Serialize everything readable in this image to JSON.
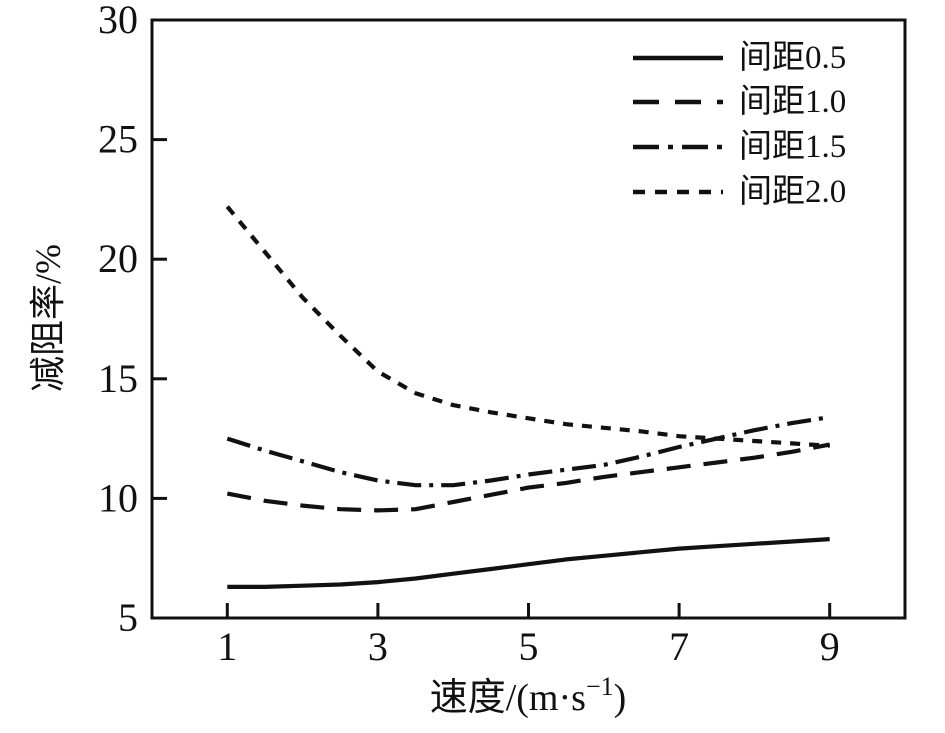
{
  "chart_data": {
    "type": "line",
    "title": "",
    "xlabel": {
      "pre": "速度/(m·s",
      "sup": "−1",
      "post": ")"
    },
    "ylabel": "减阻率/%",
    "xlim": [
      0,
      10
    ],
    "ylim": [
      5,
      30
    ],
    "xticks": [
      "1",
      "3",
      "5",
      "7",
      "9"
    ],
    "xtick_values": [
      1,
      3,
      5,
      7,
      9
    ],
    "yticks": [
      "5",
      "10",
      "15",
      "20",
      "25",
      "30"
    ],
    "ytick_values": [
      5,
      10,
      15,
      20,
      25,
      30
    ],
    "grid": false,
    "legend_position": "upper right",
    "colors": {
      "line": "#111111",
      "text": "#111111",
      "frame": "#111111",
      "background": "#ffffff"
    },
    "x": [
      1,
      1.5,
      2,
      2.5,
      3,
      3.5,
      4,
      4.5,
      5,
      5.5,
      6,
      6.5,
      7,
      7.5,
      8,
      8.5,
      9
    ],
    "series": [
      {
        "name": "间距0.5",
        "style": "solid",
        "values": [
          6.3,
          6.3,
          6.35,
          6.4,
          6.5,
          6.65,
          6.85,
          7.05,
          7.25,
          7.45,
          7.6,
          7.75,
          7.9,
          8.0,
          8.1,
          8.2,
          8.3
        ]
      },
      {
        "name": "间距1.0",
        "style": "dashed",
        "values": [
          10.2,
          9.9,
          9.7,
          9.55,
          9.5,
          9.55,
          9.85,
          10.15,
          10.45,
          10.65,
          10.9,
          11.1,
          11.3,
          11.5,
          11.7,
          11.95,
          12.25
        ]
      },
      {
        "name": "间距1.5",
        "style": "dashdot",
        "values": [
          12.5,
          12.0,
          11.55,
          11.1,
          10.75,
          10.55,
          10.55,
          10.75,
          11.0,
          11.2,
          11.4,
          11.75,
          12.15,
          12.5,
          12.85,
          13.15,
          13.4
        ]
      },
      {
        "name": "间距2.0",
        "style": "densely-dashed",
        "values": [
          22.2,
          20.3,
          18.4,
          16.8,
          15.3,
          14.4,
          13.9,
          13.6,
          13.35,
          13.1,
          12.95,
          12.8,
          12.6,
          12.5,
          12.4,
          12.3,
          12.2
        ]
      }
    ]
  }
}
